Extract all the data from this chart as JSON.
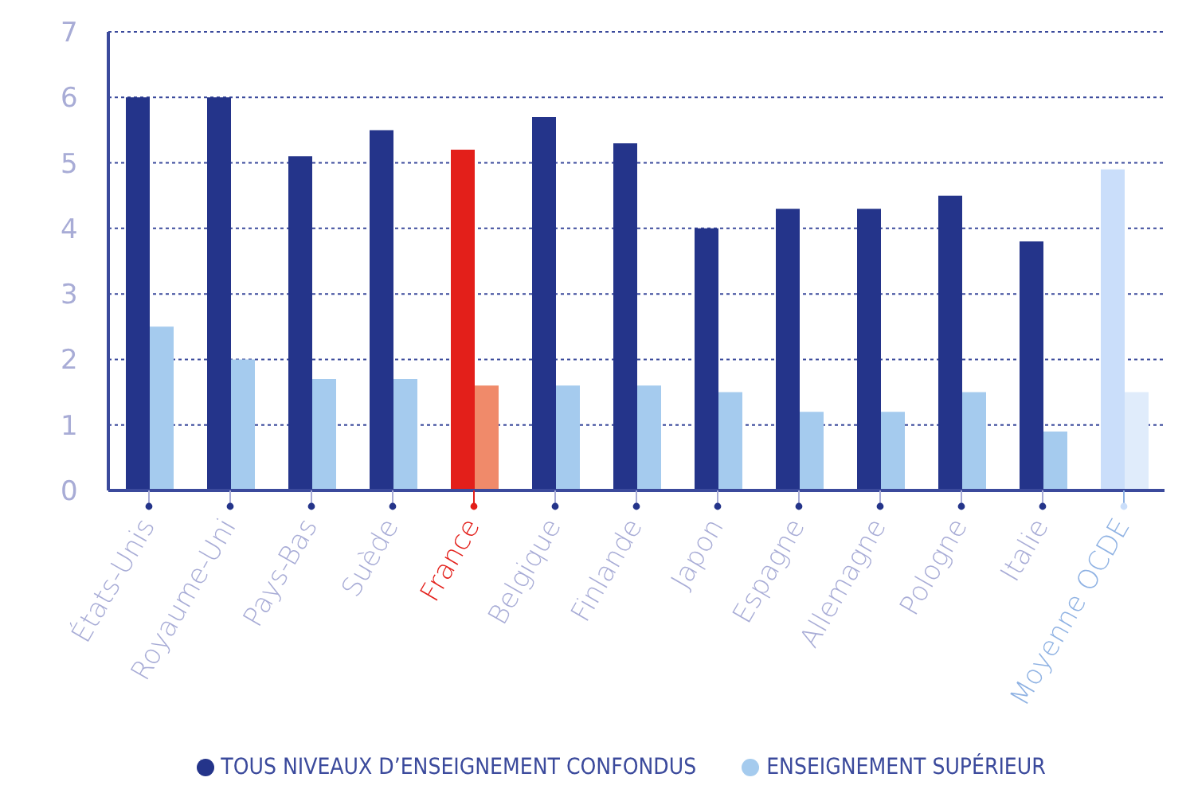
{
  "chart_data": {
    "type": "bar",
    "categories": [
      "États-Unis",
      "Royaume-Uni",
      "Pays-Bas",
      "Suède",
      "France",
      "Belgique",
      "Finlande",
      "Japon",
      "Espagne",
      "Allemagne",
      "Pologne",
      "Italie",
      "Moyenne OCDE"
    ],
    "series": [
      {
        "name": "TOUS NIVEAUX D’ENSEIGNEMENT CONFONDUS",
        "color": "#24348a",
        "colors": [
          "#24348a",
          "#24348a",
          "#24348a",
          "#24348a",
          "#e31f1a",
          "#24348a",
          "#24348a",
          "#24348a",
          "#24348a",
          "#24348a",
          "#24348a",
          "#24348a",
          "#cadefa"
        ],
        "values": [
          6.0,
          6.0,
          5.1,
          5.5,
          5.2,
          5.7,
          5.3,
          4.0,
          4.3,
          4.3,
          4.5,
          3.8,
          4.9
        ]
      },
      {
        "name": "ENSEIGNEMENT SUPÉRIEUR",
        "color": "#a5cbee",
        "colors": [
          "#a5cbee",
          "#a5cbee",
          "#a5cbee",
          "#a5cbee",
          "#f08a6a",
          "#a5cbee",
          "#a5cbee",
          "#a5cbee",
          "#a5cbee",
          "#a5cbee",
          "#a5cbee",
          "#a5cbee",
          "#e0ecfb"
        ],
        "values": [
          2.5,
          2.0,
          1.7,
          1.7,
          1.6,
          1.6,
          1.6,
          1.5,
          1.2,
          1.2,
          1.5,
          0.9,
          1.5
        ]
      }
    ],
    "ylim": [
      0,
      7
    ],
    "yticks": [
      0,
      1,
      2,
      3,
      4,
      5,
      6,
      7
    ],
    "grid": "y",
    "legend": "bottom"
  }
}
